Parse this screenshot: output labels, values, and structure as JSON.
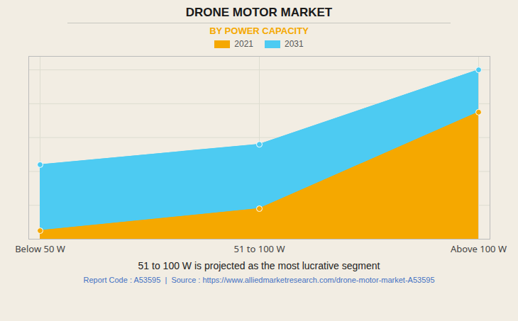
{
  "chart_data": {
    "type": "area",
    "title": "DRONE MOTOR MARKET",
    "subtitle": "BY POWER CAPACITY",
    "caption": "51 to 100 W is projected as the most lucrative segment",
    "footer": "Report Code : A53595  |  Source : https://www.alliedmarketresearch.com/drone-motor-market-A53595",
    "categories": [
      "Below 50 W",
      "51 to 100 W",
      "Above 100 W"
    ],
    "series": [
      {
        "name": "2021",
        "color": "#F5A800",
        "values": [
          0.05,
          0.18,
          0.75
        ]
      },
      {
        "name": "2031",
        "color": "#4DCBF2",
        "values": [
          0.44,
          0.56,
          1.0
        ]
      }
    ],
    "ylim": [
      0,
      1.08
    ],
    "yticks": [
      0.2,
      0.4,
      0.6,
      0.8,
      1.0
    ],
    "grid": true,
    "legend": "top",
    "marker": "circle",
    "tick_labels": "x"
  }
}
